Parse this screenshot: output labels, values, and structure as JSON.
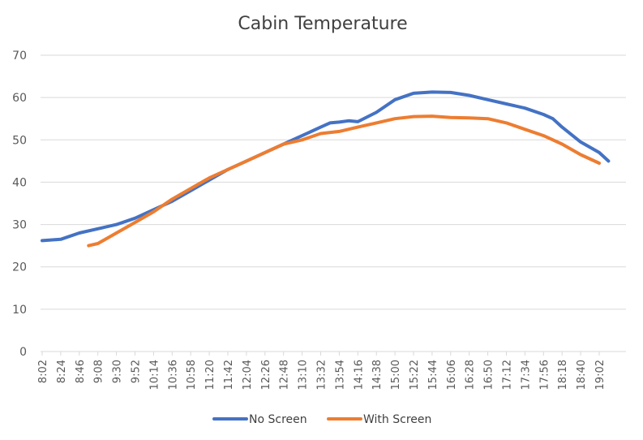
{
  "chart_data": {
    "type": "line",
    "title": "Cabin Temperature",
    "xlabel": "",
    "ylabel": "",
    "ylim": [
      0,
      70
    ],
    "yticks": [
      0,
      10,
      20,
      30,
      40,
      50,
      60,
      70
    ],
    "x_tick_labels": [
      "8:02",
      "8:24",
      "8:46",
      "9:08",
      "9:30",
      "9:52",
      "10:14",
      "10:36",
      "10:58",
      "11:20",
      "11:42",
      "12:04",
      "12:26",
      "12:48",
      "13:10",
      "13:32",
      "13:54",
      "14:16",
      "14:38",
      "15:00",
      "15:22",
      "15:44",
      "16:06",
      "16:28",
      "16:50",
      "17:12",
      "17:34",
      "17:56",
      "18:18",
      "18:40",
      "19:02"
    ],
    "grid": true,
    "legend": "bottom",
    "series": [
      {
        "name": "No Screen",
        "color": "#4472C4",
        "x": [
          "8:02",
          "8:24",
          "8:46",
          "9:08",
          "9:30",
          "9:52",
          "10:14",
          "10:36",
          "10:58",
          "11:20",
          "11:42",
          "12:04",
          "12:26",
          "12:48",
          "13:10",
          "13:32",
          "13:43",
          "13:54",
          "14:05",
          "14:16",
          "14:38",
          "15:00",
          "15:22",
          "15:44",
          "16:06",
          "16:28",
          "16:50",
          "17:12",
          "17:34",
          "17:56",
          "18:07",
          "18:18",
          "18:40",
          "19:02",
          "19:13"
        ],
        "values": [
          26.2,
          26.5,
          28,
          29,
          30,
          31.5,
          33.5,
          35.5,
          38,
          40.5,
          43,
          45,
          47,
          49,
          51,
          53,
          54,
          54.2,
          54.5,
          54.3,
          56.5,
          59.5,
          61,
          61.3,
          61.2,
          60.5,
          59.5,
          58.5,
          57.5,
          56,
          55,
          53,
          49.5,
          47,
          45
        ]
      },
      {
        "name": "With Screen",
        "color": "#ED7D31",
        "x": [
          "8:57",
          "9:08",
          "9:30",
          "9:52",
          "10:14",
          "10:36",
          "10:58",
          "11:20",
          "11:42",
          "12:04",
          "12:26",
          "12:48",
          "13:10",
          "13:32",
          "13:54",
          "14:16",
          "14:38",
          "15:00",
          "15:22",
          "15:44",
          "16:06",
          "16:28",
          "16:50",
          "17:12",
          "17:34",
          "17:56",
          "18:18",
          "18:40",
          "19:02"
        ],
        "values": [
          25,
          25.5,
          28,
          30.5,
          33,
          36,
          38.5,
          41,
          43,
          45,
          47,
          49,
          50,
          51.5,
          52,
          53,
          54,
          55,
          55.5,
          55.6,
          55.3,
          55.2,
          55,
          54,
          52.5,
          51,
          49,
          46.5,
          44.5
        ]
      }
    ]
  }
}
